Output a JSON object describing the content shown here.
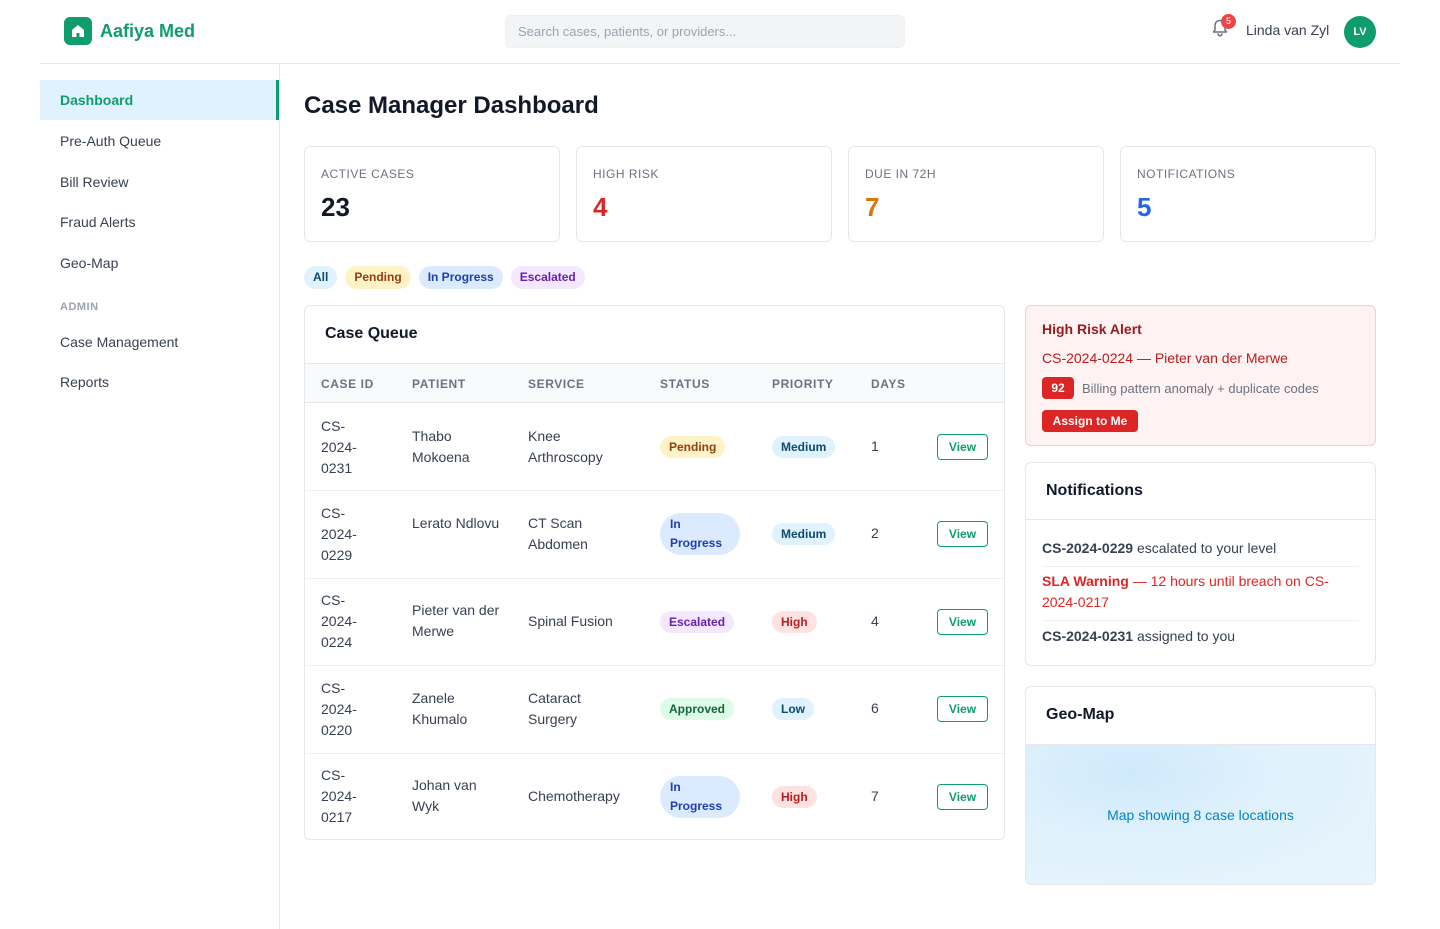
{
  "app": {
    "brand": "Aafiya Med",
    "search_placeholder": "Search cases, patients, or providers...",
    "notification_count": "5",
    "user_name": "Linda van Zyl",
    "user_initials": "LV"
  },
  "sidebar": {
    "items": [
      {
        "label": "Dashboard",
        "active": true
      },
      {
        "label": "Pre-Auth Queue"
      },
      {
        "label": "Bill Review"
      },
      {
        "label": "Fraud Alerts"
      },
      {
        "label": "Geo-Map"
      }
    ],
    "admin_heading": "ADMIN",
    "admin_items": [
      {
        "label": "Case Management"
      },
      {
        "label": "Reports"
      }
    ]
  },
  "page": {
    "title": "Case Manager Dashboard"
  },
  "stats": [
    {
      "label": "ACTIVE CASES",
      "value": "23",
      "color": "#111827"
    },
    {
      "label": "HIGH RISK",
      "value": "4",
      "color": "#dc2626"
    },
    {
      "label": "DUE IN 72H",
      "value": "7",
      "color": "#d97706"
    },
    {
      "label": "NOTIFICATIONS",
      "value": "5",
      "color": "#2563eb"
    }
  ],
  "filters": [
    "All",
    "Pending",
    "In Progress",
    "Escalated"
  ],
  "queue": {
    "title": "Case Queue",
    "columns": [
      "CASE ID",
      "PATIENT",
      "SERVICE",
      "STATUS",
      "PRIORITY",
      "DAYS"
    ],
    "view_label": "View",
    "rows": [
      {
        "case_id": "CS-2024-0231",
        "patient": "Thabo Mokoena",
        "service": "Knee Arthroscopy",
        "status": "Pending",
        "priority": "Medium",
        "days": "1"
      },
      {
        "case_id": "CS-2024-0229",
        "patient": "Lerato Ndlovu",
        "service": "CT Scan Abdomen",
        "status": "In Progress",
        "priority": "Medium",
        "days": "2"
      },
      {
        "case_id": "CS-2024-0224",
        "patient": "Pieter van der Merwe",
        "service": "Spinal Fusion",
        "status": "Escalated",
        "priority": "High",
        "days": "4"
      },
      {
        "case_id": "CS-2024-0220",
        "patient": "Zanele Khumalo",
        "service": "Cataract Surgery",
        "status": "Approved",
        "priority": "Low",
        "days": "6"
      },
      {
        "case_id": "CS-2024-0217",
        "patient": "Johan van Wyk",
        "service": "Chemotherapy",
        "status": "In Progress",
        "priority": "High",
        "days": "7"
      }
    ]
  },
  "alert": {
    "title": "High Risk Alert",
    "case": "CS-2024-0224 — Pieter van der Merwe",
    "score": "92",
    "reason": "Billing pattern anomaly + duplicate codes",
    "button": "Assign to Me"
  },
  "notifications": {
    "title": "Notifications",
    "items": [
      {
        "bold": "CS-2024-0229",
        "text": " escalated to your level",
        "warning": false
      },
      {
        "bold": "SLA Warning",
        "text": " — 12 hours until breach on CS-2024-0217",
        "warning": true
      },
      {
        "bold": "CS-2024-0231",
        "text": " assigned to you",
        "warning": false
      }
    ]
  },
  "geo": {
    "title": "Geo-Map",
    "caption": "Map showing 8 case locations"
  },
  "colors": {
    "brand": "#0f9d6e",
    "danger": "#dc2626",
    "warning": "#d97706",
    "info": "#2563eb"
  }
}
